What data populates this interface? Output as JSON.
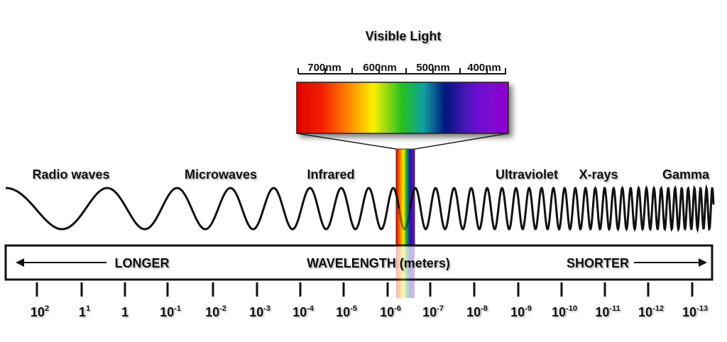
{
  "visible_light": {
    "title": "Visible Light",
    "scale_labels": [
      "700nm",
      "600nm",
      "500nm",
      "400nm"
    ]
  },
  "bands": [
    "Radio waves",
    "Microwaves",
    "Infrared",
    "Ultraviolet",
    "X-rays",
    "Gamma"
  ],
  "bar": {
    "left": "LONGER",
    "center": "WAVELENGTH (meters)",
    "right": "SHORTER"
  },
  "scale": [
    {
      "base": "10",
      "exp": "2"
    },
    {
      "base": "1",
      "exp": "1"
    },
    {
      "base": "1"
    },
    {
      "base": "10",
      "exp": "-1"
    },
    {
      "base": "10",
      "exp": "-2"
    },
    {
      "base": "10",
      "exp": "-3"
    },
    {
      "base": "10",
      "exp": "-4"
    },
    {
      "base": "10",
      "exp": "-5"
    },
    {
      "base": "10",
      "exp": "-6"
    },
    {
      "base": "10",
      "exp": "-7"
    },
    {
      "base": "10",
      "exp": "-8"
    },
    {
      "base": "10",
      "exp": "-9"
    },
    {
      "base": "10",
      "exp": "-10"
    },
    {
      "base": "10",
      "exp": "-11"
    },
    {
      "base": "10",
      "exp": "-12"
    },
    {
      "base": "10",
      "exp": "-13"
    }
  ]
}
